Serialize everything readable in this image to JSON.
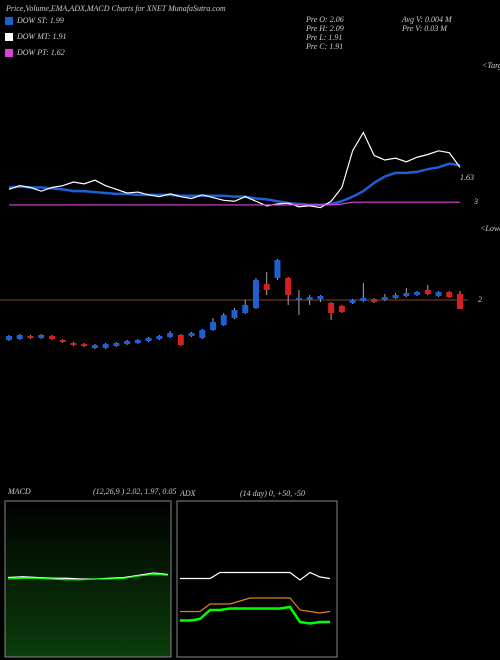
{
  "title": "Price,Volume,EMA,ADX,MACD Charts for XNET MunafaSutra.com",
  "stats": [
    "Pre  O: 2.06",
    "Pre  H: 2.09",
    "Pre  L: 1.91",
    "Pre  C: 1.91"
  ],
  "volume_stats": [
    "Avg V: 0.004  M",
    "Pre  V: 0.03  M"
  ],
  "chart_data": [
    {
      "type": "line",
      "ylim": [
        1.4,
        2.6
      ],
      "legend": "top-left",
      "annotations": [
        "1.63",
        "3",
        "<Target",
        "<Lower"
      ],
      "series": [
        {
          "name": "DOW ST: 1.99",
          "color": "#1e5fd4",
          "values": [
            1.7,
            1.71,
            1.7,
            1.7,
            1.69,
            1.68,
            1.66,
            1.66,
            1.65,
            1.64,
            1.63,
            1.63,
            1.62,
            1.62,
            1.62,
            1.62,
            1.61,
            1.61,
            1.61,
            1.61,
            1.61,
            1.6,
            1.6,
            1.58,
            1.57,
            1.55,
            1.53,
            1.52,
            1.51,
            1.51,
            1.52,
            1.55,
            1.6,
            1.66,
            1.75,
            1.82,
            1.86,
            1.86,
            1.87,
            1.9,
            1.92,
            1.96,
            1.94
          ]
        },
        {
          "name": "DOW MT: 1.91",
          "color": "#ffffff",
          "values": [
            1.68,
            1.72,
            1.7,
            1.66,
            1.7,
            1.72,
            1.76,
            1.74,
            1.78,
            1.72,
            1.68,
            1.64,
            1.65,
            1.62,
            1.6,
            1.63,
            1.6,
            1.58,
            1.62,
            1.59,
            1.56,
            1.55,
            1.6,
            1.55,
            1.5,
            1.52,
            1.53,
            1.49,
            1.5,
            1.48,
            1.55,
            1.7,
            2.1,
            2.3,
            2.05,
            2.0,
            2.02,
            1.98,
            2.03,
            2.06,
            2.1,
            2.08,
            1.92
          ]
        },
        {
          "name": "DOW PT: 1.62",
          "color": "#e040e0",
          "values": [
            1.51,
            1.51,
            1.51,
            1.51,
            1.51,
            1.51,
            1.51,
            1.51,
            1.51,
            1.51,
            1.51,
            1.51,
            1.51,
            1.51,
            1.51,
            1.51,
            1.51,
            1.51,
            1.51,
            1.51,
            1.51,
            1.51,
            1.51,
            1.51,
            1.51,
            1.51,
            1.51,
            1.51,
            1.51,
            1.51,
            1.51,
            1.52,
            1.54,
            1.54,
            1.54,
            1.54,
            1.54,
            1.54,
            1.54,
            1.54,
            1.54,
            1.54,
            1.54
          ]
        }
      ]
    },
    {
      "type": "candlestick",
      "ylim": [
        1.4,
        2.5
      ],
      "yticks": [
        2
      ],
      "grid": true,
      "grid_color": "#8b4513",
      "up_color": "#1e5fd4",
      "down_color": "#d42020",
      "open": [
        1.6,
        1.61,
        1.64,
        1.62,
        1.64,
        1.6,
        1.57,
        1.56,
        1.52,
        1.52,
        1.54,
        1.56,
        1.57,
        1.59,
        1.61,
        1.63,
        1.65,
        1.64,
        1.62,
        1.7,
        1.75,
        1.82,
        1.87,
        1.92,
        2.16,
        2.22,
        2.22,
        2.0,
        2.0,
        2.01,
        1.97,
        1.94,
        1.97,
        1.99,
        2.01,
        2.0,
        2.02,
        2.04,
        2.05,
        2.1,
        2.04,
        2.08,
        2.06
      ],
      "high": [
        1.65,
        1.66,
        1.65,
        1.66,
        1.65,
        1.61,
        1.58,
        1.57,
        1.56,
        1.57,
        1.58,
        1.6,
        1.61,
        1.63,
        1.65,
        1.69,
        1.66,
        1.68,
        1.71,
        1.82,
        1.87,
        1.92,
        2.0,
        2.22,
        2.28,
        2.41,
        2.23,
        2.1,
        2.05,
        2.05,
        1.98,
        1.95,
        2.01,
        2.17,
        2.02,
        2.06,
        2.07,
        2.12,
        2.09,
        2.15,
        2.09,
        2.09,
        2.09
      ],
      "low": [
        1.59,
        1.6,
        1.61,
        1.61,
        1.6,
        1.57,
        1.54,
        1.53,
        1.51,
        1.51,
        1.53,
        1.55,
        1.56,
        1.58,
        1.6,
        1.62,
        1.54,
        1.63,
        1.61,
        1.69,
        1.74,
        1.81,
        1.86,
        1.91,
        2.05,
        2.2,
        1.95,
        1.85,
        1.95,
        1.98,
        1.8,
        1.87,
        1.96,
        1.98,
        1.97,
        1.99,
        2.01,
        2.03,
        2.04,
        2.05,
        2.03,
        2.02,
        1.91
      ],
      "close": [
        1.64,
        1.65,
        1.62,
        1.65,
        1.61,
        1.58,
        1.55,
        1.54,
        1.55,
        1.56,
        1.57,
        1.59,
        1.6,
        1.62,
        1.64,
        1.67,
        1.55,
        1.67,
        1.7,
        1.78,
        1.85,
        1.9,
        1.95,
        2.2,
        2.1,
        2.4,
        2.05,
        2.02,
        2.03,
        2.04,
        1.87,
        1.88,
        2.0,
        2.02,
        1.98,
        2.03,
        2.05,
        2.07,
        2.08,
        2.06,
        2.08,
        2.03,
        1.91
      ]
    },
    {
      "type": "line",
      "title": "MACD",
      "subtitle": "(12,26,9 ) 2.02, 1.97, 0.05",
      "ylim": [
        -1,
        1
      ],
      "series": [
        {
          "color": "#ffffff",
          "values": [
            0.02,
            0.03,
            0.02,
            0.01,
            0.01,
            0.0,
            0.0,
            0.01,
            0.02,
            0.05,
            0.08,
            0.06
          ]
        },
        {
          "color": "#00ff00",
          "values": [
            0.0,
            0.01,
            0.01,
            0.0,
            -0.01,
            -0.01,
            0.0,
            0.0,
            0.01,
            0.04,
            0.06,
            0.05
          ]
        }
      ]
    },
    {
      "type": "line",
      "title": "ADX",
      "subtitle": "(14 day) 0, +50, -50",
      "ylim": [
        0,
        100
      ],
      "series": [
        {
          "color": "#ffffff",
          "values": [
            51,
            51,
            51,
            51,
            55,
            55,
            55,
            55,
            55,
            55,
            55,
            55,
            50,
            55,
            52,
            51
          ]
        },
        {
          "color": "#e08020",
          "values": [
            29,
            29,
            29,
            34,
            34,
            34,
            36,
            38,
            38,
            38,
            38,
            38,
            30,
            29,
            28,
            29
          ]
        },
        {
          "color": "#00ff00",
          "values": [
            23,
            23,
            24,
            30,
            30,
            31,
            31,
            31,
            31,
            31,
            31,
            32,
            22,
            21,
            22,
            22
          ]
        }
      ]
    }
  ]
}
